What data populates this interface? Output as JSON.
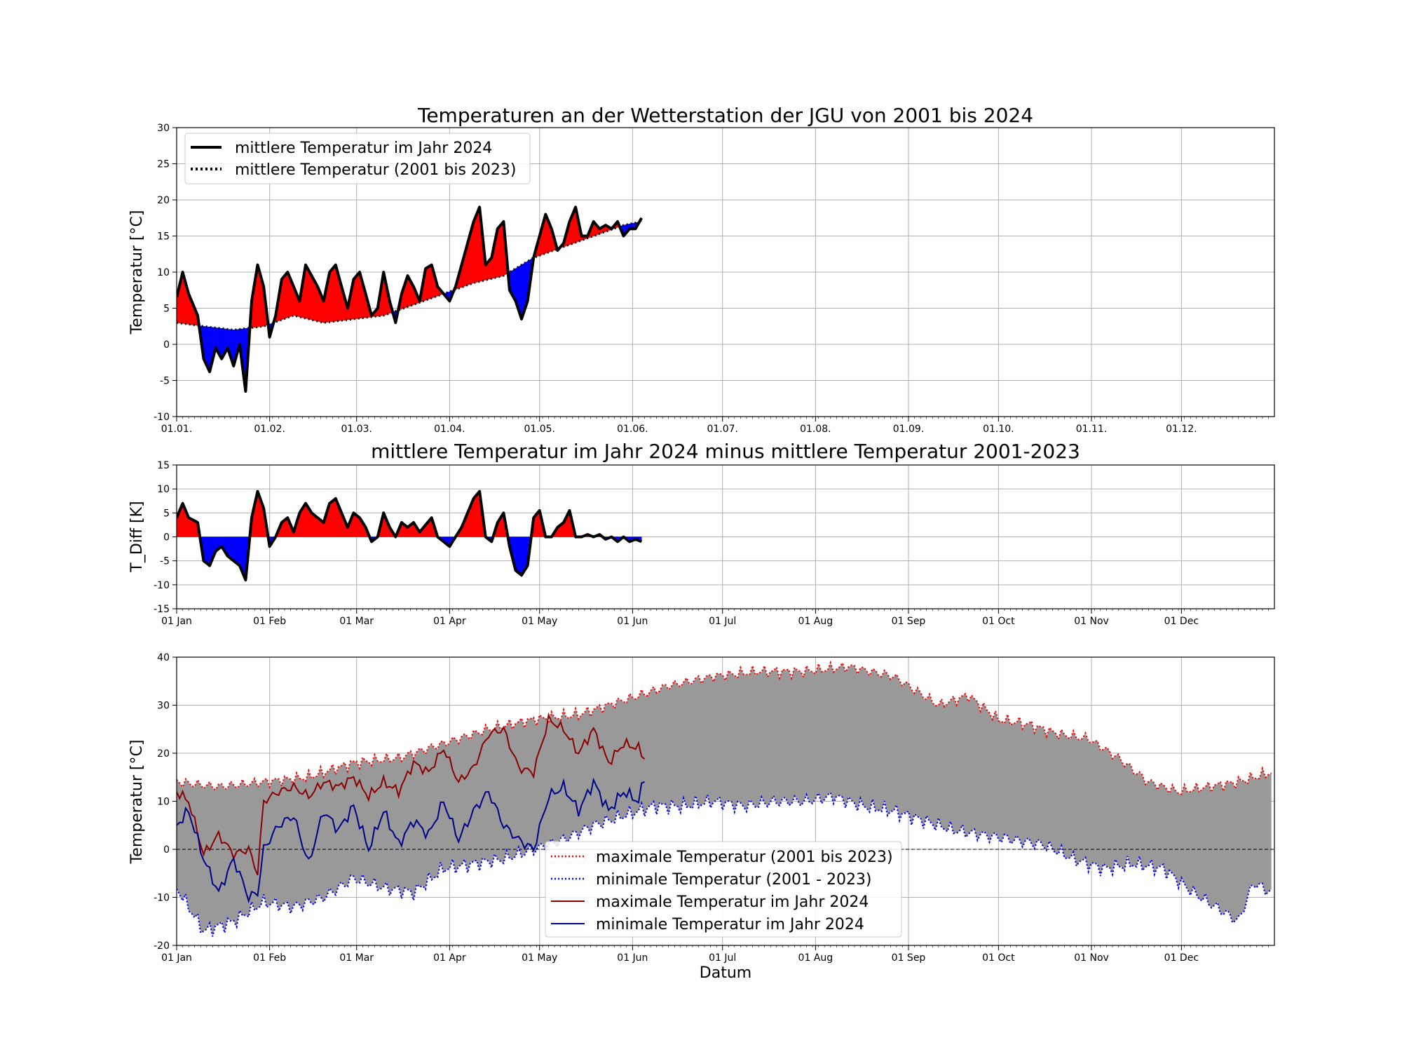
{
  "chart_data": [
    {
      "type": "area",
      "title": "Temperaturen an der Wetterstation der JGU von 2001 bis 2024",
      "ylabel": "Temperatur [°C]",
      "ylim": [
        -10,
        30
      ],
      "yticks": [
        -10,
        -5,
        0,
        5,
        10,
        15,
        20,
        25,
        30
      ],
      "xtick_labels": [
        "01.01.",
        "01.02.",
        "01.03.",
        "01.04.",
        "01.05.",
        "01.06.",
        "01.07.",
        "01.08.",
        "01.09.",
        "01.10.",
        "01.11.",
        "01.12."
      ],
      "grid": true,
      "legend_position": "upper-left",
      "legend": [
        "mittlere Temperatur im Jahr 2024",
        "mittlere Temperatur (2001 bis 2023)"
      ],
      "fill_colors": {
        "above": "#ff0000",
        "below": "#0000ff"
      },
      "series": [
        {
          "name": "mittlere Temperatur im Jahr 2024",
          "x": [
            1,
            3,
            5,
            8,
            10,
            12,
            14,
            16,
            18,
            20,
            22,
            24,
            26,
            28,
            30,
            32,
            34,
            36,
            38,
            40,
            42,
            44,
            46,
            48,
            50,
            52,
            54,
            56,
            58,
            60,
            62,
            64,
            66,
            68,
            70,
            72,
            74,
            76,
            78,
            80,
            82,
            84,
            86,
            88,
            90,
            92,
            94,
            96,
            98,
            100,
            102,
            104,
            106,
            108,
            110,
            112,
            114,
            116,
            118,
            120,
            122,
            124,
            126,
            128,
            130,
            132,
            134,
            136,
            138,
            140,
            142,
            144,
            146,
            148,
            150,
            152,
            154,
            156
          ],
          "values": [
            6.5,
            10,
            7,
            4,
            -2,
            -3.8,
            -0.5,
            -2,
            -0.5,
            -3,
            0,
            -6.5,
            6,
            11,
            8,
            1,
            4,
            9,
            10,
            8,
            6,
            11,
            9.5,
            8,
            6,
            10,
            11,
            8,
            5,
            9,
            10,
            7,
            4,
            5,
            10,
            6,
            3,
            7,
            9.5,
            8,
            6,
            10.5,
            11,
            8,
            7,
            6,
            8,
            11,
            14,
            17,
            19,
            11,
            12,
            16,
            17,
            7.5,
            6,
            3.5,
            6,
            12,
            15,
            18,
            16,
            13,
            14,
            17,
            19,
            15,
            15,
            17,
            16,
            16.5,
            16,
            17,
            15,
            16,
            16,
            17.5
          ]
        },
        {
          "name": "mittlere Temperatur (2001 bis 2023)",
          "x": [
            1,
            10,
            20,
            30,
            40,
            50,
            60,
            70,
            80,
            90,
            100,
            110,
            120,
            130,
            140,
            150,
            156
          ],
          "values": [
            3,
            2.5,
            2,
            2.5,
            4,
            3,
            3.5,
            4,
            5.5,
            7,
            8.5,
            9.5,
            12,
            13.5,
            15,
            16.5,
            17
          ]
        }
      ]
    },
    {
      "type": "area",
      "title": "mittlere Temperatur im Jahr 2024 minus mittlere Temperatur 2001-2023",
      "ylabel": "T_Diff [K]",
      "ylim": [
        -15,
        15
      ],
      "yticks": [
        -15,
        -10,
        -5,
        0,
        5,
        10,
        15
      ],
      "xtick_labels": [
        "01 Jan",
        "01 Feb",
        "01 Mar",
        "01 Apr",
        "01 May",
        "01 Jun",
        "01 Jul",
        "01 Aug",
        "01 Sep",
        "01 Oct",
        "01 Nov",
        "01 Dec"
      ],
      "grid": true,
      "fill_colors": {
        "above": "#ff0000",
        "below": "#0000ff"
      },
      "series": [
        {
          "name": "",
          "x": [
            1,
            3,
            5,
            8,
            10,
            12,
            14,
            16,
            18,
            20,
            22,
            24,
            26,
            28,
            30,
            32,
            34,
            36,
            38,
            40,
            42,
            44,
            46,
            48,
            50,
            52,
            54,
            56,
            58,
            60,
            62,
            64,
            66,
            68,
            70,
            72,
            74,
            76,
            78,
            80,
            82,
            84,
            86,
            88,
            90,
            92,
            94,
            96,
            98,
            100,
            102,
            104,
            106,
            108,
            110,
            112,
            114,
            116,
            118,
            120,
            122,
            124,
            126,
            128,
            130,
            132,
            134,
            136,
            138,
            140,
            142,
            144,
            146,
            148,
            150,
            152,
            154,
            156
          ],
          "values": [
            4,
            7,
            4,
            3,
            -5,
            -6,
            -3,
            -2,
            -4,
            -5,
            -6,
            -9,
            4,
            9.5,
            6,
            -2,
            0,
            3,
            4,
            1,
            5,
            7,
            5,
            4,
            3,
            7,
            8,
            5,
            2,
            5,
            4,
            2,
            -1,
            0,
            5,
            2,
            0,
            3,
            2,
            3,
            1,
            2.5,
            4,
            0,
            -1,
            -2,
            0,
            2,
            5,
            8,
            9.5,
            0,
            -1,
            3,
            5,
            -2,
            -7,
            -8,
            -6,
            4,
            5.5,
            0,
            0,
            2,
            3,
            5.5,
            0,
            0,
            0.5,
            0,
            0.5,
            -0.5,
            0,
            -1,
            0,
            -1,
            -0.5,
            -1
          ]
        }
      ]
    },
    {
      "type": "line",
      "title": "",
      "xlabel": "Datum",
      "ylabel": "Temperatur [°C]",
      "ylim": [
        -20,
        40
      ],
      "yticks": [
        -20,
        -10,
        0,
        10,
        20,
        30,
        40
      ],
      "xtick_labels": [
        "01 Jan",
        "01 Feb",
        "01 Mar",
        "01 Apr",
        "01 May",
        "01 Jun",
        "01 Jul",
        "01 Aug",
        "01 Sep",
        "01 Oct",
        "01 Nov",
        "01 Dec"
      ],
      "grid": true,
      "legend_position": "lower-center",
      "legend": [
        "maximale Temperatur (2001 bis 2023)",
        "minimale Temperatur (2001 - 2023)",
        "maximale Temperatur im Jahr 2024",
        "minimale Temperatur im Jahr 2024"
      ],
      "fill_color": "#999999",
      "series": [
        {
          "name": "maximale Temperatur (2001 bis 2023)",
          "x": [
            1,
            15,
            30,
            45,
            60,
            75,
            90,
            105,
            120,
            135,
            150,
            165,
            180,
            195,
            210,
            225,
            240,
            250,
            255,
            265,
            275,
            285,
            295,
            305,
            315,
            325,
            335,
            345,
            355,
            366
          ],
          "values": [
            14,
            13,
            14,
            15,
            18,
            19,
            22,
            25,
            27,
            28,
            31,
            34,
            36,
            37,
            37,
            38,
            36,
            32,
            30,
            32,
            27,
            26,
            24,
            23,
            19,
            14,
            12,
            13,
            14,
            16
          ]
        },
        {
          "name": "minimale Temperatur (2001 - 2023)",
          "x": [
            1,
            10,
            20,
            30,
            40,
            50,
            60,
            70,
            80,
            90,
            100,
            110,
            120,
            130,
            140,
            150,
            160,
            170,
            180,
            190,
            200,
            210,
            220,
            230,
            240,
            250,
            260,
            270,
            280,
            290,
            300,
            310,
            320,
            330,
            340,
            350,
            355,
            360,
            366
          ],
          "values": [
            -8,
            -17,
            -15,
            -11,
            -12,
            -10,
            -6,
            -8,
            -9,
            -4,
            -3,
            -2,
            0,
            2,
            5,
            7,
            9,
            9,
            10,
            9,
            10,
            10,
            11,
            9,
            8,
            6,
            4,
            3,
            2,
            1,
            -2,
            -4,
            -3,
            -4,
            -9,
            -13,
            -15,
            -7,
            -9
          ]
        },
        {
          "name": "maximale Temperatur im Jahr 2024",
          "x": [
            1,
            5,
            10,
            15,
            20,
            25,
            28,
            30,
            35,
            40,
            45,
            50,
            55,
            60,
            65,
            70,
            75,
            80,
            85,
            90,
            95,
            100,
            105,
            110,
            115,
            120,
            125,
            130,
            135,
            140,
            145,
            150,
            155,
            157
          ],
          "values": [
            12,
            10,
            -1,
            3,
            -1,
            0,
            -5,
            10,
            12,
            13,
            11,
            14,
            13,
            15,
            11,
            14,
            12,
            18,
            16,
            21,
            14,
            17,
            24,
            25,
            17,
            16,
            27,
            25,
            20,
            25,
            18,
            22,
            21,
            19
          ]
        },
        {
          "name": "minimale Temperatur im Jahr 2024",
          "x": [
            1,
            5,
            10,
            15,
            20,
            25,
            28,
            30,
            35,
            40,
            45,
            50,
            55,
            60,
            65,
            70,
            75,
            80,
            85,
            90,
            95,
            100,
            105,
            110,
            115,
            120,
            125,
            130,
            135,
            140,
            145,
            150,
            155,
            157
          ],
          "values": [
            5,
            8,
            -2,
            -9,
            -2,
            -10,
            -9,
            0,
            5,
            7,
            -3,
            8,
            4,
            9,
            0,
            8,
            1,
            6,
            3,
            10,
            2,
            8,
            12,
            5,
            2,
            0,
            11,
            13,
            8,
            14,
            8,
            12,
            10,
            15
          ]
        }
      ]
    }
  ]
}
